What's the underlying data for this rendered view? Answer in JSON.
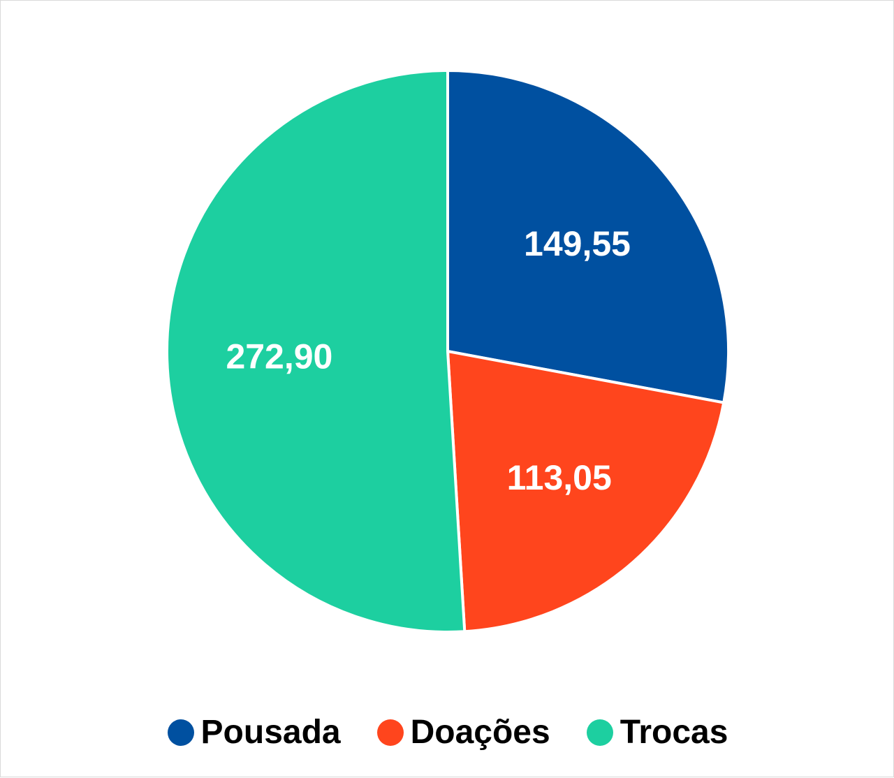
{
  "chart_data": {
    "type": "pie",
    "title": "",
    "categories": [
      "Pousada",
      "Doações",
      "Trocas"
    ],
    "values": [
      149.55,
      113.05,
      272.9
    ],
    "value_labels": [
      "149,55",
      "113,05",
      "272,90"
    ],
    "colors": [
      "#0050A0",
      "#FF451D",
      "#1DCFA0"
    ],
    "legend_position": "bottom",
    "start_angle": "top, clockwise"
  },
  "legend": {
    "items": [
      {
        "label": "Pousada",
        "color": "#0050A0"
      },
      {
        "label": "Doações",
        "color": "#FF451D"
      },
      {
        "label": "Trocas",
        "color": "#1DCFA0"
      }
    ]
  }
}
